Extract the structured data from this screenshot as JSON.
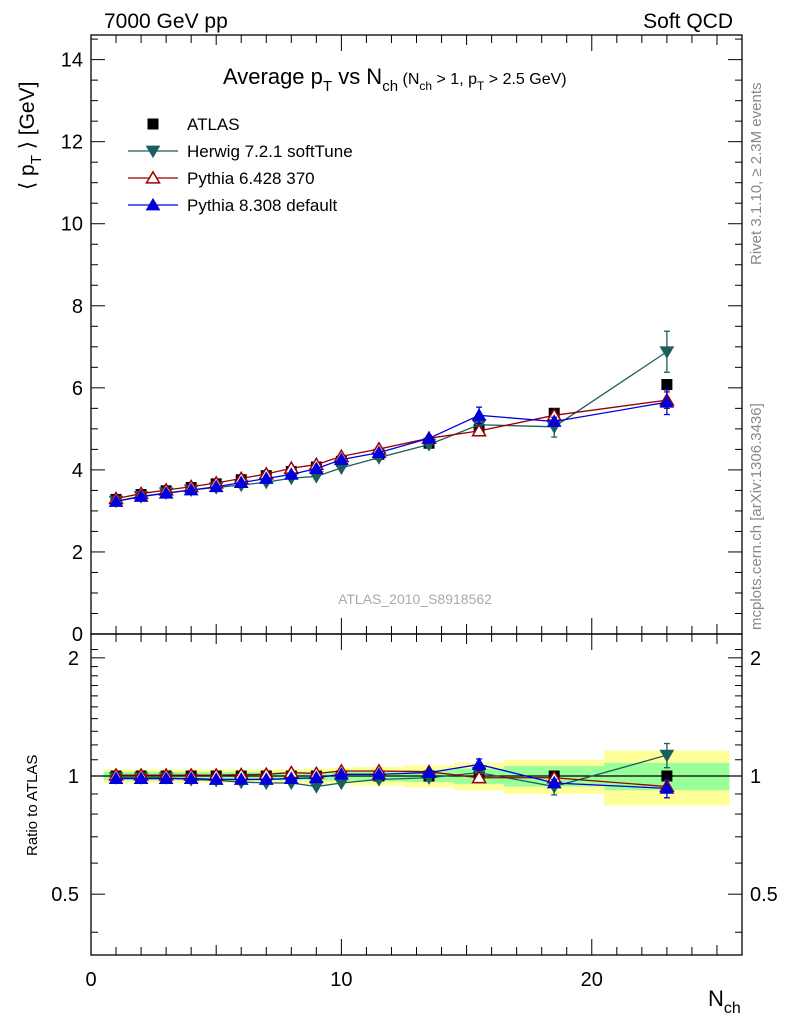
{
  "header": {
    "left": "7000 GeV pp",
    "right": "Soft QCD"
  },
  "side_text": {
    "rivet": "Rivet 3.1.10, ≥ 2.3M events",
    "mcplots": "mcplots.cern.ch [arXiv:1306.3436]"
  },
  "title": {
    "main_a": "Average p",
    "main_a_sub": "T",
    "main_b": " vs N",
    "main_b_sub": "ch",
    "paren_a": " (N",
    "paren_a_sub": "ch",
    "paren_b": " > 1, p",
    "paren_b_sub": "T",
    "paren_c": " > 2.5 GeV)"
  },
  "axes": {
    "y_main_label_a": "⟨ p",
    "y_main_label_sub": "T",
    "y_main_label_b": " ⟩  [GeV]",
    "y_ratio_label": "Ratio to ATLAS",
    "x_label": "N",
    "x_label_sub": "ch"
  },
  "watermark": "ATLAS_2010_S8918562",
  "colors": {
    "atlas": "#000000",
    "herwig": "#1b5e5e",
    "pythia6": "#990000",
    "pythia8": "#0000dd",
    "band_inner": "#99ff99",
    "band_outer": "#ffff99"
  },
  "chart_data": {
    "type": "scatter",
    "x_range": [
      0,
      26
    ],
    "main": {
      "ylim": [
        0,
        14.6
      ],
      "y_ticks": [
        0,
        2,
        4,
        6,
        8,
        10,
        12,
        14
      ],
      "y_tick_labels": [
        "0",
        "2",
        "4",
        "6",
        "8",
        "10",
        "12",
        "14"
      ]
    },
    "ratio": {
      "log_scale": true,
      "ylim": [
        0.35,
        2.3
      ],
      "y_ticks": [
        0.5,
        1,
        2
      ],
      "y_tick_labels": [
        "0.5",
        "1",
        "2"
      ]
    },
    "x_ticks": [
      0,
      10,
      20
    ],
    "x_tick_labels": [
      "0",
      "10",
      "20"
    ],
    "legend": [
      "ATLAS",
      "Herwig 7.2.1 softTune",
      "Pythia 6.428 370",
      "Pythia 8.308 default"
    ],
    "legend_position": "top-left",
    "data": {
      "name": "ATLAS",
      "x": [
        1,
        2,
        3,
        4,
        5,
        6,
        7,
        8,
        9,
        10,
        11.5,
        13.5,
        15.5,
        18.5,
        23
      ],
      "y": [
        3.28,
        3.4,
        3.49,
        3.57,
        3.66,
        3.76,
        3.86,
        3.96,
        4.07,
        4.21,
        4.38,
        4.65,
        4.98,
        5.38,
        6.08
      ],
      "ratio_band_inner": [
        0.025,
        0.025,
        0.025,
        0.025,
        0.025,
        0.025,
        0.025,
        0.025,
        0.025,
        0.028,
        0.03,
        0.035,
        0.045,
        0.06,
        0.08
      ],
      "ratio_band_outer": [
        0.04,
        0.04,
        0.04,
        0.04,
        0.04,
        0.04,
        0.04,
        0.04,
        0.045,
        0.05,
        0.055,
        0.065,
        0.08,
        0.1,
        0.16
      ],
      "bin_edges": [
        [
          0.5,
          1.5
        ],
        [
          1.5,
          2.5
        ],
        [
          2.5,
          3.5
        ],
        [
          3.5,
          4.5
        ],
        [
          4.5,
          5.5
        ],
        [
          5.5,
          6.5
        ],
        [
          6.5,
          7.5
        ],
        [
          7.5,
          8.5
        ],
        [
          8.5,
          9.5
        ],
        [
          9.5,
          10.5
        ],
        [
          10.5,
          12.5
        ],
        [
          12.5,
          14.5
        ],
        [
          14.5,
          16.5
        ],
        [
          16.5,
          20.5
        ],
        [
          20.5,
          25.5
        ]
      ]
    },
    "series": [
      {
        "name": "Herwig 7.2.1 softTune",
        "marker": "triangle-down-filled",
        "x": [
          1,
          2,
          3,
          4,
          5,
          6,
          7,
          8,
          9,
          10,
          11.5,
          13.5,
          15.5,
          18.5,
          23
        ],
        "y": [
          3.24,
          3.35,
          3.44,
          3.51,
          3.57,
          3.63,
          3.7,
          3.8,
          3.84,
          4.05,
          4.3,
          4.62,
          5.1,
          5.05,
          6.88
        ],
        "yerr": [
          0.02,
          0.02,
          0.02,
          0.02,
          0.02,
          0.02,
          0.02,
          0.03,
          0.03,
          0.04,
          0.05,
          0.07,
          0.12,
          0.25,
          0.5
        ],
        "ratio": [
          0.99,
          0.99,
          0.99,
          0.98,
          0.975,
          0.965,
          0.96,
          0.96,
          0.94,
          0.96,
          0.98,
          0.99,
          1.02,
          0.94,
          1.13
        ],
        "ratio_err": [
          0.01,
          0.01,
          0.01,
          0.01,
          0.01,
          0.01,
          0.01,
          0.01,
          0.01,
          0.01,
          0.012,
          0.015,
          0.025,
          0.045,
          0.08
        ]
      },
      {
        "name": "Pythia 6.428 370",
        "marker": "triangle-up-open",
        "x": [
          1,
          2,
          3,
          4,
          5,
          6,
          7,
          8,
          9,
          10,
          11.5,
          13.5,
          15.5,
          18.5,
          23
        ],
        "y": [
          3.3,
          3.42,
          3.51,
          3.59,
          3.68,
          3.79,
          3.9,
          4.04,
          4.13,
          4.33,
          4.51,
          4.77,
          4.95,
          5.33,
          5.7
        ],
        "yerr": [
          0.01,
          0.01,
          0.01,
          0.01,
          0.01,
          0.01,
          0.01,
          0.02,
          0.02,
          0.02,
          0.03,
          0.04,
          0.06,
          0.1,
          0.2
        ],
        "ratio": [
          1.005,
          1.005,
          1.005,
          1.005,
          1.005,
          1.008,
          1.01,
          1.02,
          1.015,
          1.03,
          1.03,
          1.025,
          0.99,
          0.99,
          0.94
        ],
        "ratio_err": [
          0.005,
          0.005,
          0.005,
          0.005,
          0.005,
          0.005,
          0.005,
          0.006,
          0.006,
          0.006,
          0.008,
          0.01,
          0.015,
          0.02,
          0.035
        ]
      },
      {
        "name": "Pythia 8.308 default",
        "marker": "triangle-up-filled",
        "x": [
          1,
          2,
          3,
          4,
          5,
          6,
          7,
          8,
          9,
          10,
          11.5,
          13.5,
          15.5,
          18.5,
          23
        ],
        "y": [
          3.23,
          3.35,
          3.43,
          3.51,
          3.59,
          3.69,
          3.79,
          3.89,
          4.03,
          4.25,
          4.42,
          4.77,
          5.33,
          5.18,
          5.65
        ],
        "yerr": [
          0.01,
          0.01,
          0.01,
          0.01,
          0.01,
          0.01,
          0.02,
          0.02,
          0.02,
          0.03,
          0.04,
          0.06,
          0.2,
          0.1,
          0.3
        ],
        "ratio": [
          0.985,
          0.985,
          0.985,
          0.985,
          0.98,
          0.98,
          0.98,
          0.985,
          0.99,
          1.01,
          1.01,
          1.02,
          1.07,
          0.96,
          0.93
        ],
        "ratio_err": [
          0.005,
          0.005,
          0.005,
          0.005,
          0.005,
          0.006,
          0.006,
          0.006,
          0.007,
          0.008,
          0.01,
          0.012,
          0.035,
          0.02,
          0.05
        ]
      }
    ]
  }
}
